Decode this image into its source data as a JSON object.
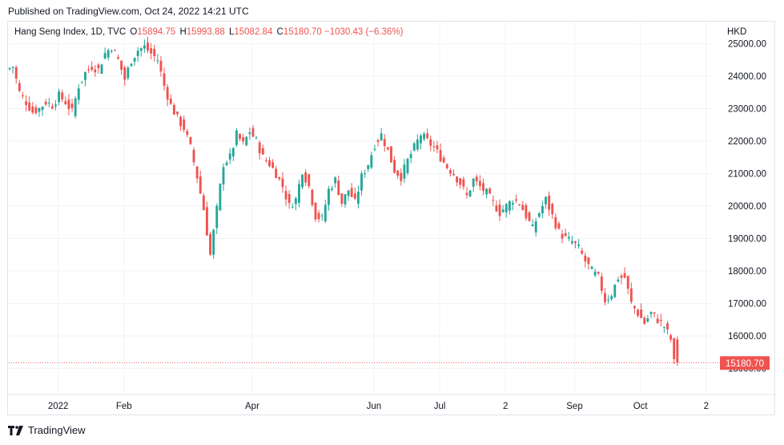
{
  "header": {
    "published": "Published on TradingView.com, Oct 24, 2022 14:21 UTC"
  },
  "legend": {
    "symbol": "Hang Seng Index, 1D, TVC",
    "o_label": "O",
    "o_value": "15894.75",
    "h_label": "H",
    "h_value": "15993.88",
    "l_label": "L",
    "l_value": "15082.84",
    "c_label": "C",
    "c_value": "15180.70",
    "change": "−1030.43 (−6.36%)"
  },
  "currency": "HKD",
  "footer": {
    "brand": "TradingView"
  },
  "colors": {
    "up": "#26a69a",
    "down": "#ef5350",
    "grid": "#f0f3fa",
    "text": "#131722"
  },
  "chart_data": {
    "type": "candlestick",
    "title": "Hang Seng Index, 1D, TVC",
    "ylabel": "HKD",
    "ylim": [
      14200,
      25700
    ],
    "yticks": [
      15000,
      16000,
      17000,
      18000,
      19000,
      20000,
      21000,
      22000,
      23000,
      24000,
      25000
    ],
    "ytick_labels": [
      "15000.00",
      "16000.00",
      "17000.00",
      "18000.00",
      "19000.00",
      "20000.00",
      "21000.00",
      "22000.00",
      "23000.00",
      "24000.00",
      "25000.00"
    ],
    "xlim": [
      0,
      214
    ],
    "xticks": [
      {
        "label": "2022",
        "day": 15
      },
      {
        "label": "Feb",
        "day": 35
      },
      {
        "label": "Apr",
        "day": 74
      },
      {
        "label": "Jun",
        "day": 111
      },
      {
        "label": "Jul",
        "day": 131
      },
      {
        "label": "2",
        "day": 151
      },
      {
        "label": "Sep",
        "day": 172
      },
      {
        "label": "Oct",
        "day": 192
      },
      {
        "label": "2",
        "day": 212
      }
    ],
    "last_price": 15180.7,
    "last_price_label": "15180.70",
    "path": [
      [
        0,
        24200
      ],
      [
        2,
        24300
      ],
      [
        4,
        23500
      ],
      [
        6,
        23200
      ],
      [
        8,
        22900
      ],
      [
        10,
        23000
      ],
      [
        12,
        23200
      ],
      [
        14,
        23100
      ],
      [
        16,
        23400
      ],
      [
        18,
        23200
      ],
      [
        20,
        22900
      ],
      [
        22,
        23700
      ],
      [
        24,
        24100
      ],
      [
        26,
        24300
      ],
      [
        28,
        24200
      ],
      [
        30,
        24700
      ],
      [
        32,
        24900
      ],
      [
        34,
        24500
      ],
      [
        36,
        23900
      ],
      [
        38,
        24500
      ],
      [
        40,
        24800
      ],
      [
        42,
        24900
      ],
      [
        44,
        24700
      ],
      [
        46,
        24500
      ],
      [
        48,
        23700
      ],
      [
        50,
        23100
      ],
      [
        52,
        22700
      ],
      [
        54,
        22400
      ],
      [
        56,
        21800
      ],
      [
        58,
        20900
      ],
      [
        60,
        19900
      ],
      [
        62,
        18500
      ],
      [
        64,
        19900
      ],
      [
        66,
        21300
      ],
      [
        68,
        21500
      ],
      [
        70,
        22200
      ],
      [
        72,
        21900
      ],
      [
        74,
        22300
      ],
      [
        76,
        22000
      ],
      [
        78,
        21500
      ],
      [
        80,
        21300
      ],
      [
        82,
        21000
      ],
      [
        84,
        20600
      ],
      [
        86,
        20000
      ],
      [
        88,
        20200
      ],
      [
        90,
        21100
      ],
      [
        92,
        20600
      ],
      [
        94,
        19700
      ],
      [
        96,
        19600
      ],
      [
        98,
        20500
      ],
      [
        100,
        20800
      ],
      [
        102,
        20100
      ],
      [
        104,
        20500
      ],
      [
        106,
        20100
      ],
      [
        108,
        20900
      ],
      [
        110,
        21300
      ],
      [
        112,
        21900
      ],
      [
        114,
        22200
      ],
      [
        116,
        21700
      ],
      [
        118,
        21100
      ],
      [
        120,
        20900
      ],
      [
        122,
        21400
      ],
      [
        124,
        21800
      ],
      [
        126,
        22200
      ],
      [
        128,
        22000
      ],
      [
        130,
        21800
      ],
      [
        132,
        21500
      ],
      [
        134,
        21200
      ],
      [
        136,
        21000
      ],
      [
        138,
        20700
      ],
      [
        140,
        20300
      ],
      [
        142,
        20800
      ],
      [
        144,
        20600
      ],
      [
        146,
        20400
      ],
      [
        148,
        20100
      ],
      [
        150,
        19800
      ],
      [
        152,
        20000
      ],
      [
        154,
        20200
      ],
      [
        156,
        20100
      ],
      [
        158,
        19700
      ],
      [
        160,
        19300
      ],
      [
        162,
        19800
      ],
      [
        164,
        20200
      ],
      [
        166,
        19700
      ],
      [
        168,
        19200
      ],
      [
        170,
        19000
      ],
      [
        172,
        18900
      ],
      [
        174,
        18700
      ],
      [
        176,
        18300
      ],
      [
        178,
        18000
      ],
      [
        180,
        17800
      ],
      [
        182,
        17100
      ],
      [
        184,
        17300
      ],
      [
        186,
        17800
      ],
      [
        188,
        17800
      ],
      [
        190,
        17000
      ],
      [
        192,
        16700
      ],
      [
        194,
        16400
      ],
      [
        196,
        16700
      ],
      [
        198,
        16500
      ],
      [
        200,
        16300
      ],
      [
        202,
        15900
      ],
      [
        203,
        15180
      ]
    ]
  }
}
